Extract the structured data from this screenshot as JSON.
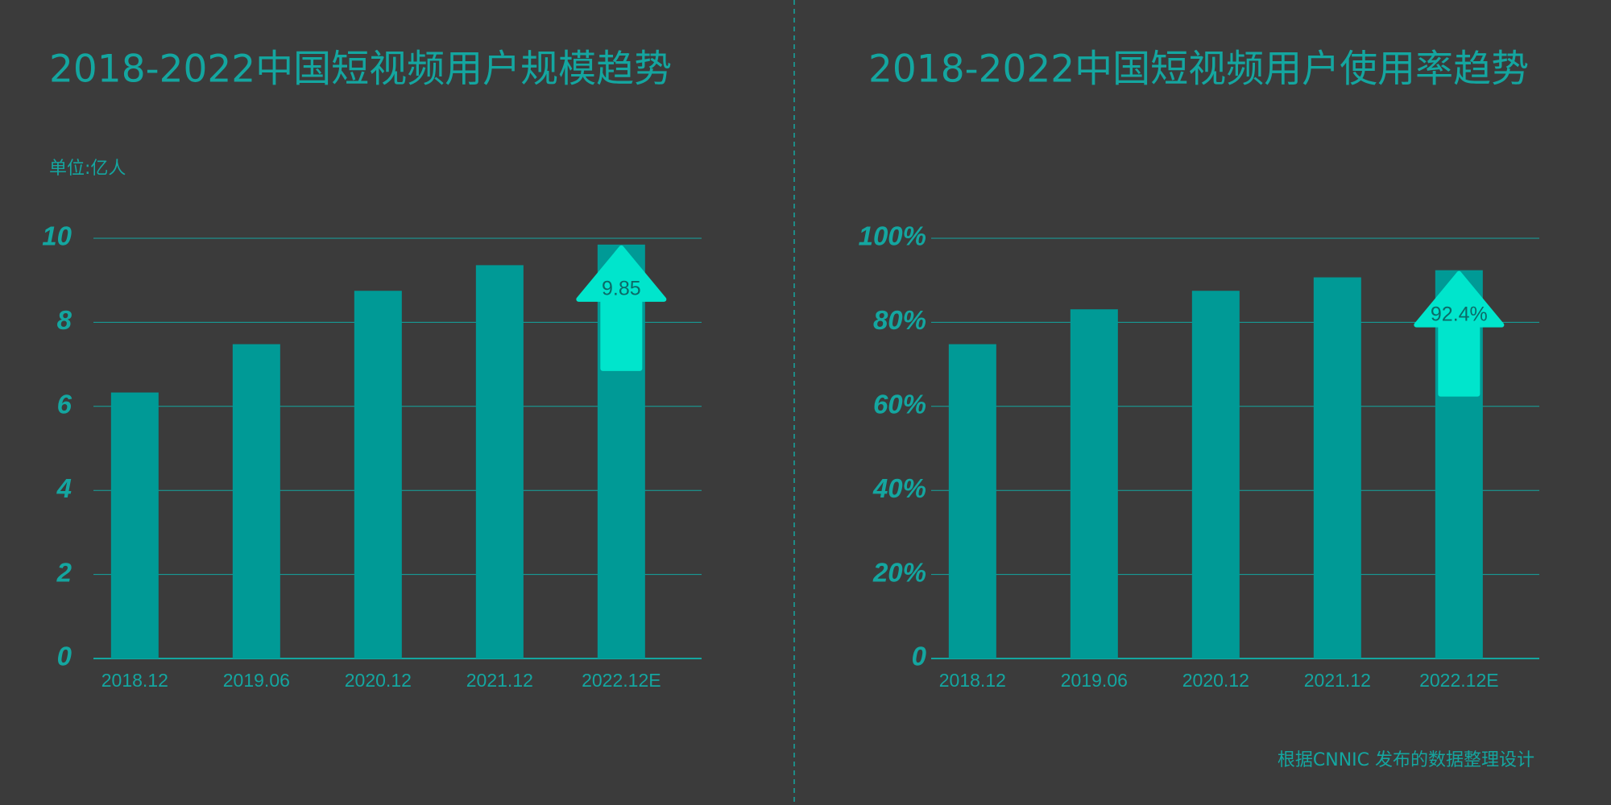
{
  "chart_data": [
    {
      "type": "bar",
      "title": "2018-2022中国短视频用户规模趋势",
      "unit": "单位:亿人",
      "categories": [
        "2018.12",
        "2019.06",
        "2020.12",
        "2021.12",
        "2022.12E"
      ],
      "values": [
        6.33,
        7.48,
        8.75,
        9.36,
        9.85
      ],
      "value_labels": [
        null,
        null,
        null,
        null,
        "9.85"
      ],
      "color": "#009a96",
      "highlight_color": "#00e5cc",
      "ylim": [
        0,
        10
      ],
      "yticks": [
        0,
        2,
        4,
        6,
        8,
        10
      ],
      "grid": true
    },
    {
      "type": "bar",
      "title": "2018-2022中国短视频用户使用率趋势",
      "categories": [
        "2018.12",
        "2019.06",
        "2020.12",
        "2021.12",
        "2022.12E"
      ],
      "values": [
        74.8,
        83.1,
        87.5,
        90.7,
        92.4
      ],
      "value_labels": [
        null,
        null,
        null,
        null,
        "92.4%"
      ],
      "color": "#009a96",
      "highlight_color": "#00e5cc",
      "ylim": [
        0,
        100
      ],
      "yticks": [
        0,
        {
          "value": 20,
          "label": "20%"
        },
        {
          "value": 40,
          "label": "40%"
        },
        {
          "value": 60,
          "label": "60%"
        },
        {
          "value": 80,
          "label": "80%"
        },
        {
          "value": 100,
          "label": "100%"
        }
      ],
      "grid": true
    }
  ],
  "footer": "根据CNNIC 发布的数据整理设计"
}
